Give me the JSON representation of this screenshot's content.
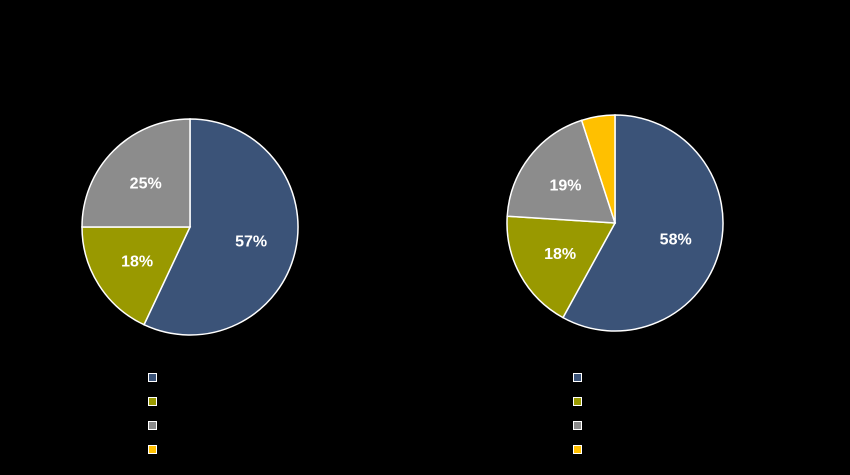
{
  "chart_data": [
    {
      "type": "pie",
      "slices": [
        {
          "name": "",
          "value": 57,
          "color": "#3b5378",
          "data_label": "57%"
        },
        {
          "name": "",
          "value": 18,
          "color": "#999900",
          "data_label": "18%"
        },
        {
          "name": "",
          "value": 25,
          "color": "#8c8c8c",
          "data_label": "25%"
        },
        {
          "name": "",
          "value": 0,
          "color": "#ffc000",
          "data_label": ""
        }
      ],
      "legend": "bottom",
      "start_angle": "12 o'clock, clockwise"
    },
    {
      "type": "pie",
      "slices": [
        {
          "name": "",
          "value": 58,
          "color": "#3b5378",
          "data_label": "58%"
        },
        {
          "name": "",
          "value": 18,
          "color": "#999900",
          "data_label": "18%"
        },
        {
          "name": "",
          "value": 19,
          "color": "#8c8c8c",
          "data_label": "19%"
        },
        {
          "name": "",
          "value": 5,
          "color": "#ffc000",
          "data_label": ""
        }
      ],
      "legend": "bottom",
      "start_angle": "12 o'clock, clockwise"
    }
  ]
}
